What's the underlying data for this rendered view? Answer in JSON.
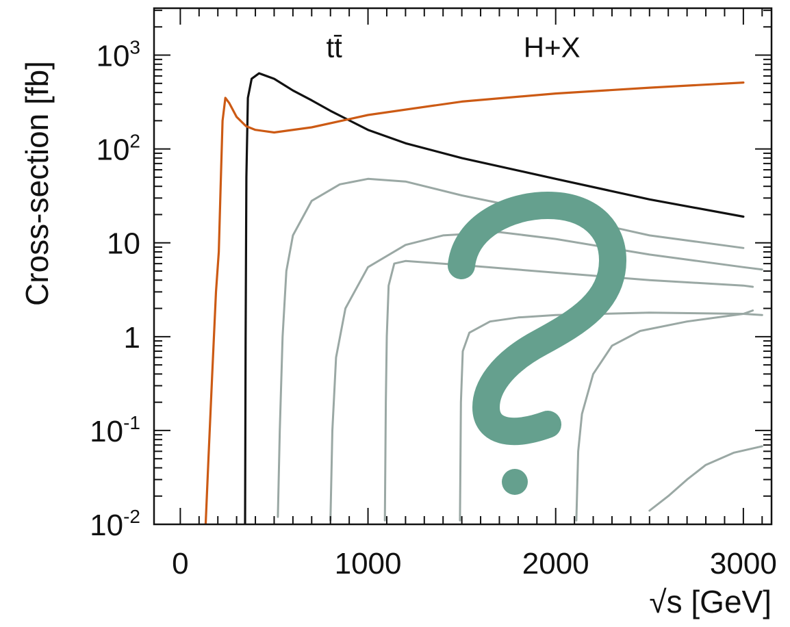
{
  "chart_data": {
    "type": "line",
    "title": "",
    "xlabel": "√s [GeV]",
    "ylabel": "Cross-section [fb]",
    "xlim": [
      -140,
      3150
    ],
    "ylim_log10": [
      -2,
      3.5
    ],
    "yscale": "log",
    "grid": false,
    "x_ticks": [
      {
        "value": 0,
        "label": "0"
      },
      {
        "value": 1000,
        "label": "1000"
      },
      {
        "value": 2000,
        "label": "2000"
      },
      {
        "value": 3000,
        "label": "3000"
      }
    ],
    "y_ticks": [
      {
        "value": 0.01,
        "base": "10",
        "exp": "-2"
      },
      {
        "value": 0.1,
        "base": "10",
        "exp": "-1"
      },
      {
        "value": 1,
        "base": "1",
        "exp": ""
      },
      {
        "value": 10,
        "base": "10",
        "exp": ""
      },
      {
        "value": 100,
        "base": "10",
        "exp": "2"
      },
      {
        "value": 1000,
        "base": "10",
        "exp": "3"
      }
    ],
    "series": [
      {
        "name": "tt̄",
        "color": "#111111",
        "label_at": [
          820,
          1200
        ],
        "points": [
          [
            345,
            0.01
          ],
          [
            348,
            1
          ],
          [
            352,
            50
          ],
          [
            360,
            350
          ],
          [
            380,
            560
          ],
          [
            420,
            640
          ],
          [
            500,
            560
          ],
          [
            600,
            420
          ],
          [
            700,
            330
          ],
          [
            800,
            255
          ],
          [
            1000,
            160
          ],
          [
            1200,
            115
          ],
          [
            1500,
            80
          ],
          [
            2000,
            48
          ],
          [
            2500,
            29
          ],
          [
            3000,
            19
          ]
        ]
      },
      {
        "name": "H+X",
        "color": "#cc5a14",
        "label_at": [
          1980,
          1200
        ],
        "points": [
          [
            135,
            0.01
          ],
          [
            150,
            0.05
          ],
          [
            170,
            0.4
          ],
          [
            190,
            3
          ],
          [
            205,
            8
          ],
          [
            215,
            40
          ],
          [
            225,
            200
          ],
          [
            240,
            350
          ],
          [
            260,
            310
          ],
          [
            300,
            220
          ],
          [
            350,
            175
          ],
          [
            400,
            160
          ],
          [
            500,
            150
          ],
          [
            700,
            170
          ],
          [
            1000,
            230
          ],
          [
            1500,
            320
          ],
          [
            2000,
            390
          ],
          [
            2500,
            450
          ],
          [
            3000,
            510
          ]
        ]
      },
      {
        "name": "",
        "color": "#9aa8a4",
        "points": [
          [
            520,
            0.012
          ],
          [
            530,
            0.1
          ],
          [
            545,
            1
          ],
          [
            565,
            5
          ],
          [
            600,
            12
          ],
          [
            700,
            28
          ],
          [
            850,
            42
          ],
          [
            1000,
            48
          ],
          [
            1200,
            45
          ],
          [
            1500,
            32
          ],
          [
            2000,
            20
          ],
          [
            2500,
            12
          ],
          [
            3000,
            8.8
          ]
        ]
      },
      {
        "name": "",
        "color": "#9aa8a4",
        "points": [
          [
            800,
            0.011
          ],
          [
            810,
            0.1
          ],
          [
            830,
            0.6
          ],
          [
            880,
            2
          ],
          [
            1000,
            5.5
          ],
          [
            1200,
            9.5
          ],
          [
            1400,
            12
          ],
          [
            1700,
            13
          ],
          [
            2000,
            11
          ],
          [
            2500,
            7.5
          ],
          [
            3000,
            5.5
          ],
          [
            3100,
            5.2
          ]
        ]
      },
      {
        "name": "",
        "color": "#9aa8a4",
        "points": [
          [
            1090,
            0.011
          ],
          [
            1095,
            0.2
          ],
          [
            1100,
            1
          ],
          [
            1110,
            3.5
          ],
          [
            1140,
            6
          ],
          [
            1200,
            6.4
          ],
          [
            1500,
            5.8
          ],
          [
            2000,
            4.8
          ],
          [
            2500,
            4.0
          ],
          [
            3000,
            3.5
          ],
          [
            3050,
            3.4
          ]
        ]
      },
      {
        "name": "",
        "color": "#9aa8a4",
        "points": [
          [
            1490,
            0.011
          ],
          [
            1495,
            0.2
          ],
          [
            1505,
            0.7
          ],
          [
            1540,
            1.1
          ],
          [
            1650,
            1.45
          ],
          [
            1800,
            1.6
          ],
          [
            2000,
            1.7
          ],
          [
            2500,
            1.8
          ],
          [
            3000,
            1.75
          ],
          [
            3100,
            1.7
          ]
        ]
      },
      {
        "name": "",
        "color": "#9aa8a4",
        "points": [
          [
            2110,
            0.011
          ],
          [
            2120,
            0.06
          ],
          [
            2140,
            0.15
          ],
          [
            2200,
            0.4
          ],
          [
            2300,
            0.8
          ],
          [
            2450,
            1.15
          ],
          [
            2700,
            1.45
          ],
          [
            3000,
            1.75
          ],
          [
            3050,
            1.9
          ]
        ]
      },
      {
        "name": "",
        "color": "#9aa8a4",
        "points": [
          [
            2500,
            0.014
          ],
          [
            2600,
            0.02
          ],
          [
            2700,
            0.03
          ],
          [
            2800,
            0.043
          ],
          [
            2950,
            0.058
          ],
          [
            3100,
            0.068
          ]
        ]
      }
    ],
    "annotation": {
      "type": "question-mark-overlay",
      "color": "#65a08e"
    }
  }
}
